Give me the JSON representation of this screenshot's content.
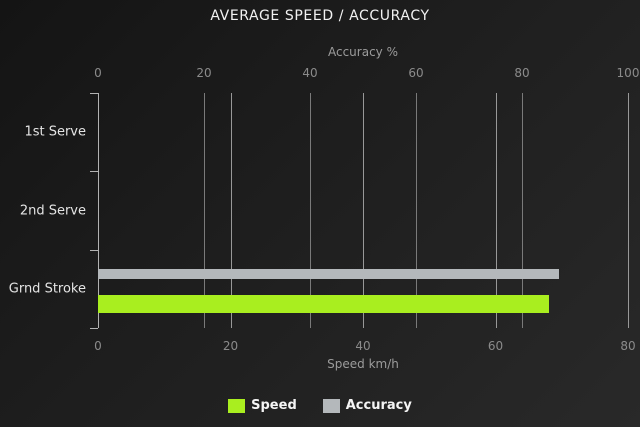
{
  "title": "AVERAGE SPEED / ACCURACY",
  "legend": {
    "speed_label": "Speed",
    "accuracy_label": "Accuracy"
  },
  "colors": {
    "speed_bar": "#a9ee1f",
    "accuracy_bar": "#b4b8bb",
    "grid_accuracy": "#7a7a7a",
    "grid_speed": "#989898",
    "axis_line": "#b2b2b2",
    "background_dark": "#141414",
    "background_light": "#292929"
  },
  "chart_data": {
    "type": "bar",
    "orientation": "horizontal",
    "title": "AVERAGE SPEED / ACCURACY",
    "categories": [
      "1st Serve",
      "2nd Serve",
      "Grnd Stroke"
    ],
    "series": [
      {
        "name": "Speed",
        "axis": "bottom",
        "unit": "km/h",
        "color": "#a9ee1f",
        "values": [
          null,
          null,
          68
        ]
      },
      {
        "name": "Accuracy",
        "axis": "top",
        "unit": "%",
        "color": "#b4b8bb",
        "values": [
          null,
          null,
          87
        ]
      }
    ],
    "top_axis": {
      "label": "Accuracy %",
      "range": [
        0,
        100
      ],
      "ticks": [
        0,
        20,
        40,
        60,
        80,
        100
      ]
    },
    "bottom_axis": {
      "label": "Speed km/h",
      "range": [
        0,
        80
      ],
      "ticks": [
        0,
        20,
        40,
        60,
        80
      ]
    },
    "grid": true,
    "legend_position": "bottom"
  }
}
